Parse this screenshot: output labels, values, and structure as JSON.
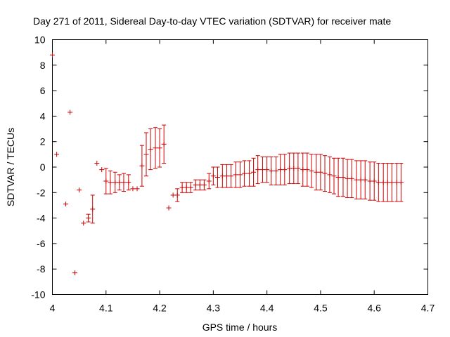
{
  "chart_data": {
    "type": "scatter",
    "title": "Day 271 of 2011, Sidereal Day-to-day VTEC variation (SDTVAR) for receiver mate",
    "xlabel": "GPS time / hours",
    "ylabel": "SDTVAR / TECUs",
    "xlim": [
      4.0,
      4.7
    ],
    "ylim": [
      -10,
      10
    ],
    "xticks": [
      4.0,
      4.1,
      4.2,
      4.3,
      4.4,
      4.5,
      4.6,
      4.7
    ],
    "xtick_labels": [
      "4",
      "4.1",
      "4.2",
      "4.3",
      "4.4",
      "4.5",
      "4.6",
      "4.7"
    ],
    "yticks": [
      10,
      8,
      6,
      4,
      2,
      0,
      -2,
      -4,
      -6,
      -8,
      -10
    ],
    "ytick_labels": [
      "10",
      "8",
      "6",
      "4",
      "2",
      "0",
      "-2",
      "-4",
      "-6",
      "-8",
      "-10"
    ],
    "grid": false,
    "color": "#cc0000",
    "series": [
      {
        "name": "SDTVAR",
        "x": [
          4.0,
          4.008,
          4.025,
          4.033,
          4.042,
          4.05,
          4.058,
          4.067,
          4.075,
          4.083,
          4.092,
          4.1,
          4.108,
          4.117,
          4.125,
          4.133,
          4.142,
          4.15,
          4.158,
          4.167,
          4.175,
          4.183,
          4.192,
          4.2,
          4.208,
          4.217,
          4.225,
          4.233,
          4.242,
          4.25,
          4.258,
          4.267,
          4.275,
          4.283,
          4.292,
          4.3,
          4.308,
          4.317,
          4.325,
          4.333,
          4.342,
          4.35,
          4.358,
          4.367,
          4.375,
          4.383,
          4.392,
          4.4,
          4.408,
          4.417,
          4.425,
          4.433,
          4.442,
          4.45,
          4.458,
          4.467,
          4.475,
          4.483,
          4.492,
          4.5,
          4.508,
          4.517,
          4.525,
          4.533,
          4.542,
          4.55,
          4.558,
          4.567,
          4.575,
          4.583,
          4.592,
          4.6,
          4.608,
          4.617,
          4.625,
          4.633,
          4.642,
          4.65
        ],
        "y": [
          8.8,
          1.0,
          -2.9,
          4.3,
          -8.3,
          -1.8,
          -4.4,
          -4.0,
          -3.3,
          0.3,
          -0.2,
          -1.1,
          -1.2,
          -1.2,
          -1.2,
          -1.2,
          -1.2,
          -1.7,
          -1.7,
          0.1,
          1.0,
          1.4,
          1.5,
          1.5,
          1.8,
          -3.2,
          -2.2,
          -2.2,
          -1.6,
          -1.6,
          -1.6,
          -1.4,
          -1.4,
          -1.4,
          -1.1,
          -0.7,
          -0.8,
          -0.7,
          -0.7,
          -0.7,
          -0.6,
          -0.6,
          -0.5,
          -0.5,
          -0.4,
          -0.2,
          -0.2,
          -0.2,
          -0.3,
          -0.3,
          -0.2,
          -0.2,
          -0.1,
          -0.1,
          -0.1,
          -0.2,
          -0.2,
          -0.3,
          -0.4,
          -0.4,
          -0.5,
          -0.6,
          -0.7,
          -0.8,
          -0.8,
          -0.9,
          -0.9,
          -1.0,
          -1.0,
          -1.0,
          -1.1,
          -1.1,
          -1.2,
          -1.2,
          -1.2,
          -1.2,
          -1.2,
          -1.2
        ],
        "err": [
          0,
          0,
          0,
          0,
          0,
          0,
          0,
          0.3,
          1.1,
          0,
          0,
          1.0,
          0.9,
          0.8,
          0.6,
          0.7,
          0.6,
          0,
          0,
          1.6,
          1.7,
          1.6,
          1.6,
          1.5,
          1.5,
          0,
          0,
          0.5,
          0.4,
          0.4,
          0.4,
          0.4,
          0.4,
          0.4,
          0.6,
          0.7,
          0.8,
          0.9,
          0.9,
          0.9,
          1.0,
          1.0,
          1.0,
          1.0,
          1.1,
          1.1,
          1.0,
          1.0,
          1.1,
          1.1,
          1.2,
          1.2,
          1.2,
          1.2,
          1.2,
          1.3,
          1.3,
          1.3,
          1.4,
          1.4,
          1.4,
          1.4,
          1.4,
          1.5,
          1.5,
          1.5,
          1.5,
          1.5,
          1.5,
          1.5,
          1.5,
          1.5,
          1.5,
          1.5,
          1.5,
          1.5,
          1.5,
          1.5
        ]
      }
    ]
  }
}
